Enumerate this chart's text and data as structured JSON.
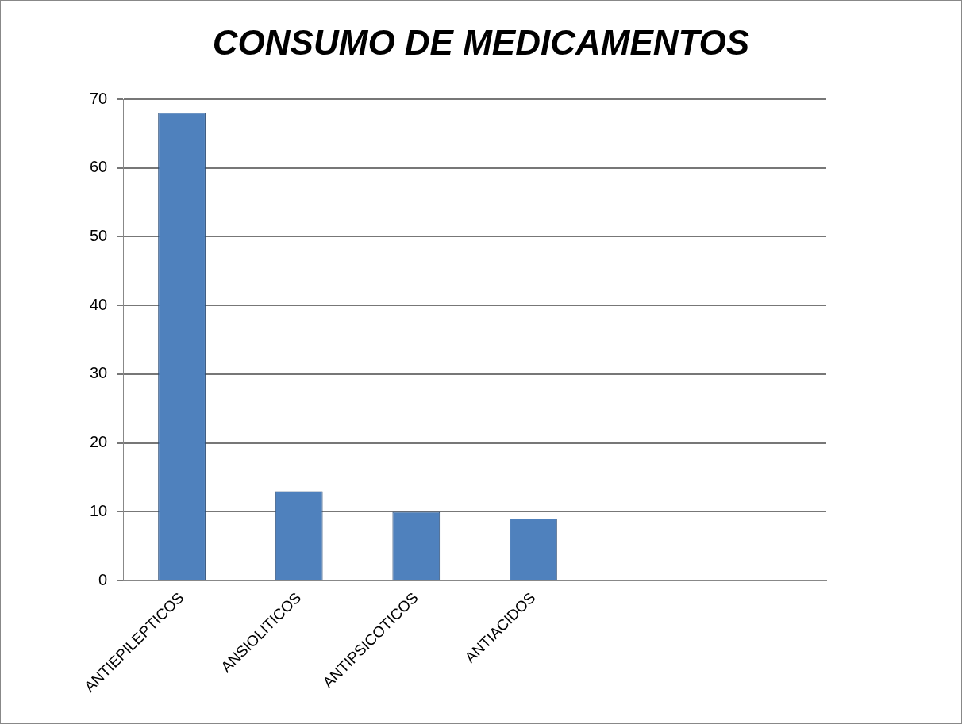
{
  "chart_data": {
    "type": "bar",
    "title": "CONSUMO DE MEDICAMENTOS",
    "categories": [
      "ANTIEPILEPTICOS",
      "ANSIOLITICOS",
      "ANTIPSICOTICOS",
      "ANTIACIDOS",
      null,
      null
    ],
    "values": [
      68,
      13,
      10,
      9,
      null,
      null
    ],
    "color": "#4f81bd",
    "ylim": [
      0,
      70
    ],
    "yticks": [
      0,
      10,
      20,
      30,
      40,
      50,
      60,
      70
    ],
    "grid": "y"
  }
}
